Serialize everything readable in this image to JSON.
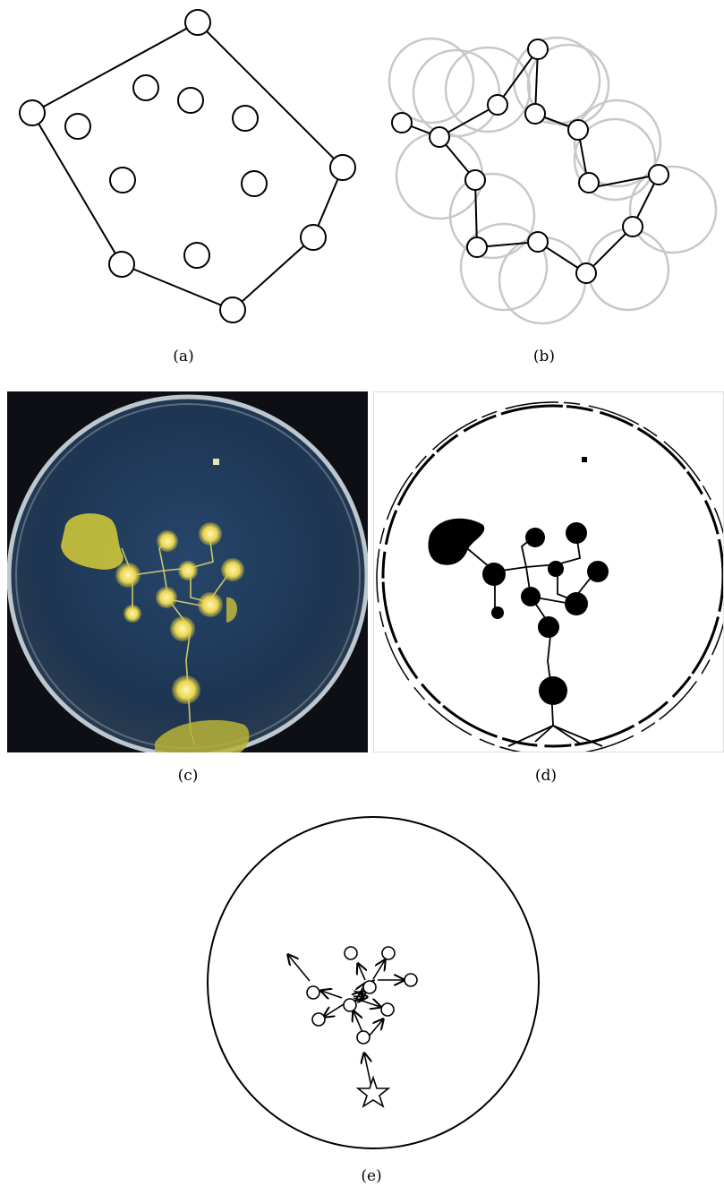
{
  "captions": {
    "a": "(a)",
    "b": "(b)",
    "c": "(c)",
    "d": "(d)",
    "e": "(e)"
  },
  "colors": {
    "stroke": "#000000",
    "grey_circle": "#c8c8c8",
    "photo_background": "#1f3550",
    "slime_yellow": "#e6d24a",
    "dish_rim": "#cfd8de"
  },
  "icons": {
    "start_marker": "star-icon"
  }
}
